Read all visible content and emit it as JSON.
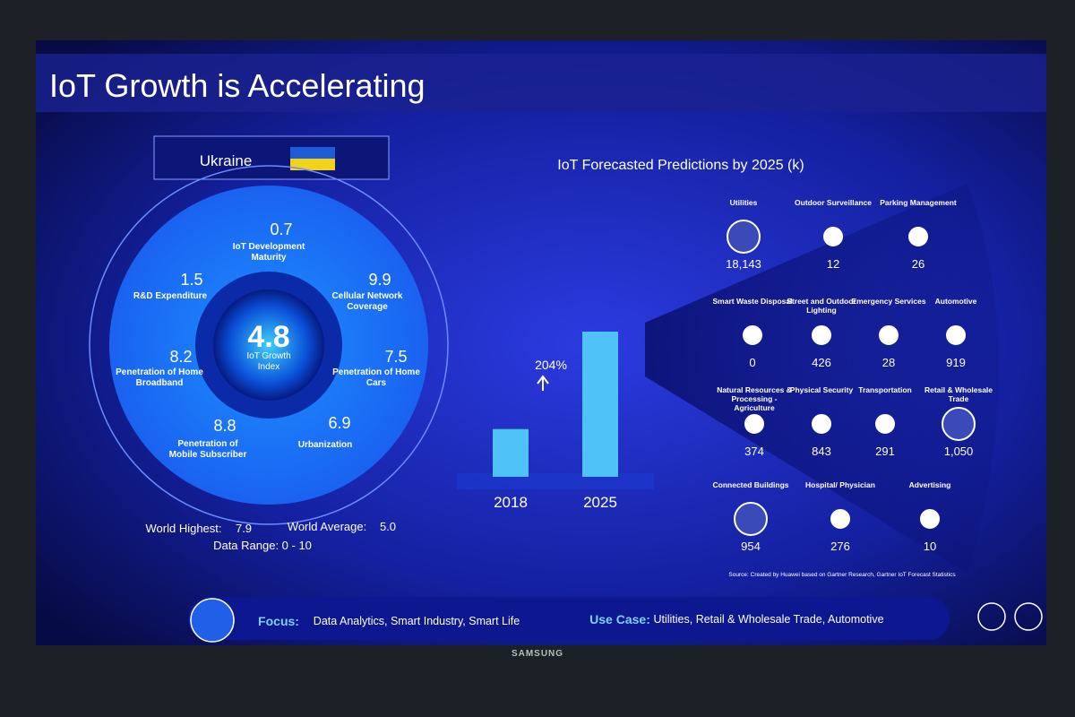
{
  "title": "IoT Growth is Accelerating",
  "country": "Ukraine",
  "index": {
    "value": 4.8,
    "label": "IoT Growth Index"
  },
  "metrics": [
    {
      "value": 0.7,
      "label": "IoT Development Maturity"
    },
    {
      "value": 1.5,
      "label": "R&D Expenditure"
    },
    {
      "value": 9.9,
      "label": "Cellular Network Coverage"
    },
    {
      "value": 8.2,
      "label": "Penetration of Home Broadband"
    },
    {
      "value": 7.5,
      "label": "Penetration of Home Cars"
    },
    {
      "value": 8.8,
      "label": "Penetration of Mobile Subscriber"
    },
    {
      "value": 6.9,
      "label": "Urbanization"
    }
  ],
  "stats": [
    {
      "label": "World Highest:",
      "value": 7.9
    },
    {
      "label": "World Average:",
      "value": 5.0,
      "value_label": "5.0"
    }
  ],
  "range_text": "Data Range: 0 - 10",
  "chart_data": {
    "type": "bar",
    "title": "IoT Forecasted Predictions by 2025 (k)",
    "categories": [
      "2018",
      "2025"
    ],
    "values": [
      7682,
      23352
    ],
    "color": "#4fc3f7",
    "annotation": "204%"
  },
  "sectors": [
    {
      "name": "Utilities",
      "value": 18143,
      "label": "18,143"
    },
    {
      "name": "Outdoor Surveillance",
      "value": 12
    },
    {
      "name": "Parking Management",
      "value": 26
    },
    {
      "name": "Smart Waste Disposal",
      "value": 0
    },
    {
      "name": "Street and Outdoor Lighting",
      "value": 426
    },
    {
      "name": "Emergency Services",
      "value": 28
    },
    {
      "name": "Automotive",
      "value": 919
    },
    {
      "name": "Natural Resources & Processing - Agriculture",
      "value": 374
    },
    {
      "name": "Physical Security",
      "value": 843
    },
    {
      "name": "Transportation",
      "value": 291
    },
    {
      "name": "Retail & Wholesale Trade",
      "value": 1050,
      "label": "1,050"
    },
    {
      "name": "Connected Buildings",
      "value": 954
    },
    {
      "name": "Hospital/ Physician",
      "value": 276
    },
    {
      "name": "Advertising",
      "value": 10
    }
  ],
  "source": "Source: Created by Huawei based on Gartner Research, Gartner IoT Forecast Statistics",
  "footer": {
    "focus_label": "Focus:",
    "focus": "Data Analytics, Smart Industry, Smart Life",
    "use_case_label": "Use Case:",
    "use_case": "Utilities, Retail & Wholesale Trade, Automotive"
  },
  "brand": "SAMSUNG"
}
